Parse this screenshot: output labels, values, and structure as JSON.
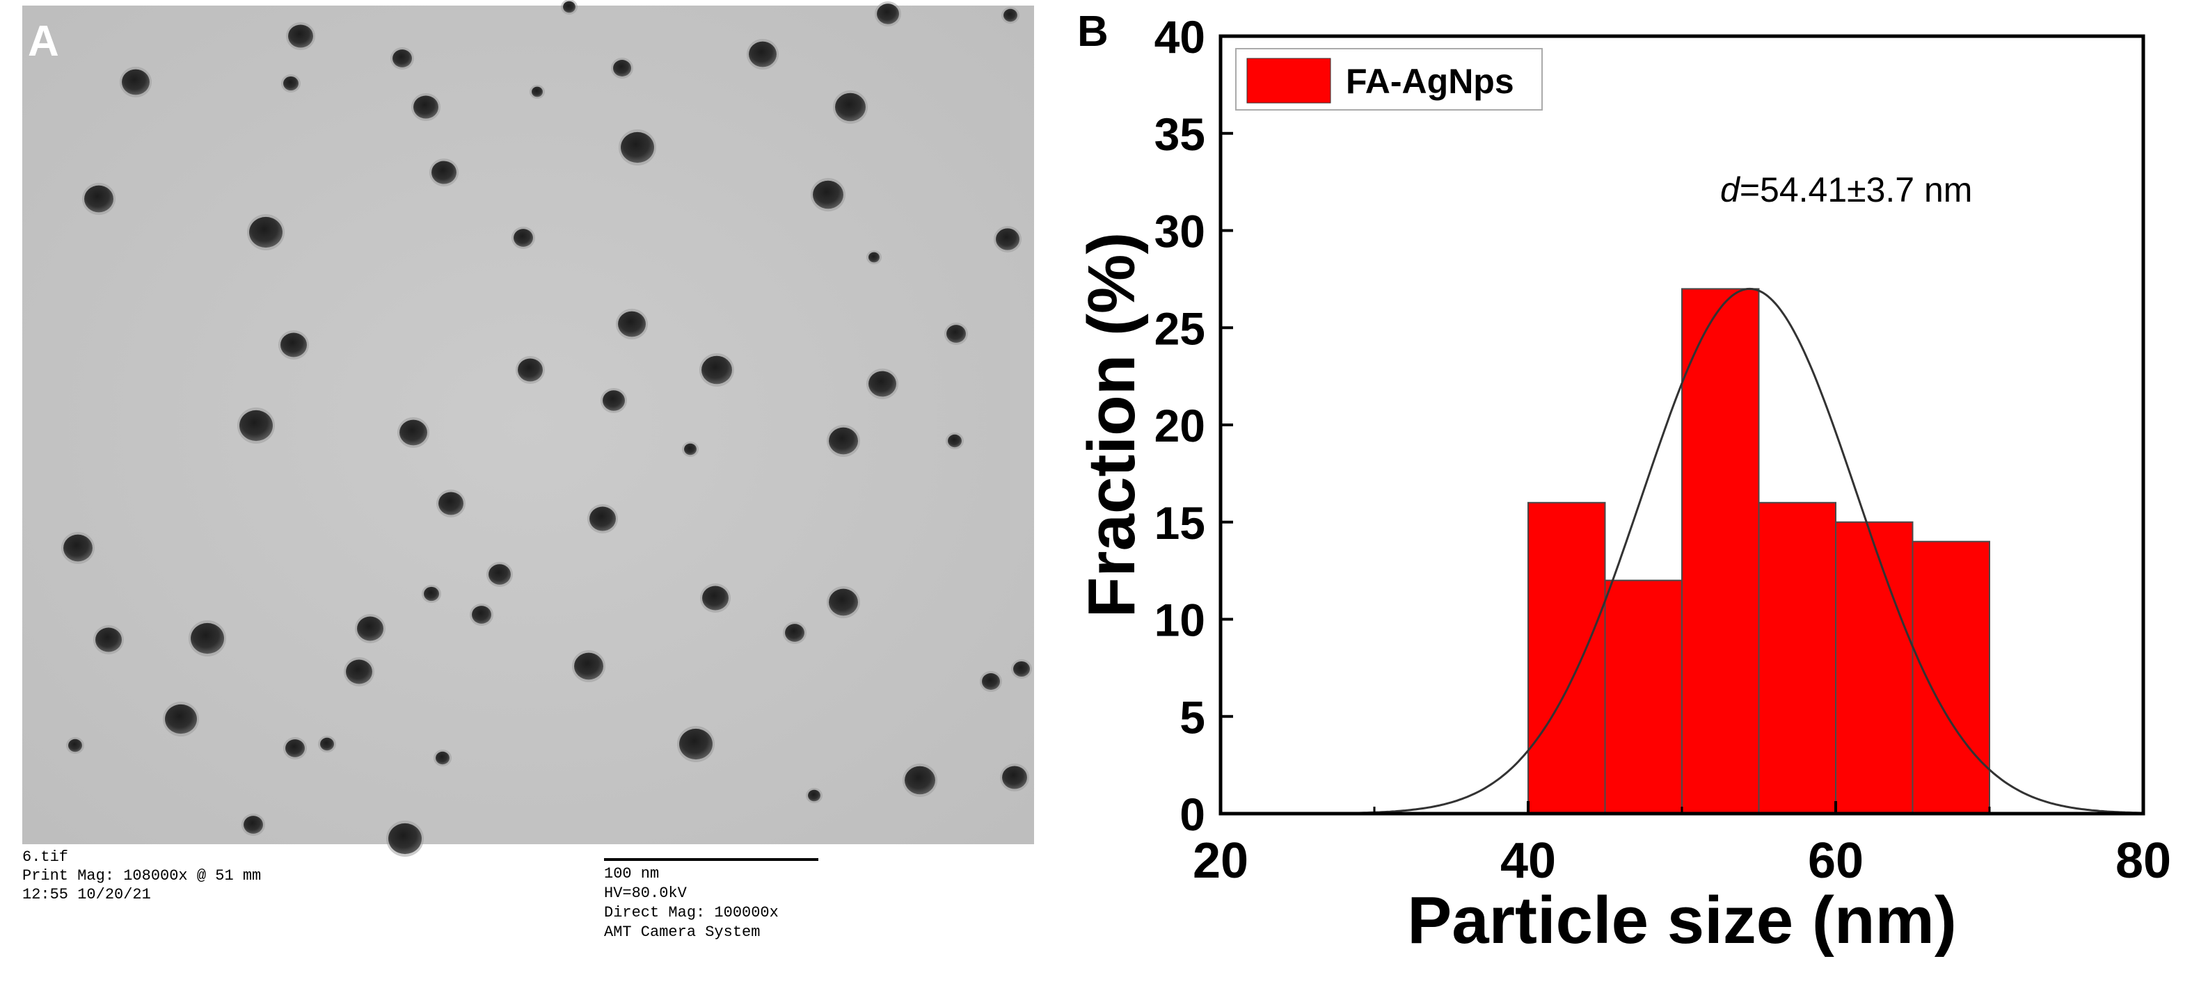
{
  "panel_a": {
    "label": "A",
    "meta_left": [
      "6.tif",
      "Print Mag: 108000x @ 51 mm",
      "12:55 10/20/21"
    ],
    "scale_bar_label": "100 nm",
    "meta_right": [
      "HV=80.0kV",
      "Direct Mag: 100000x",
      "AMT Camera System"
    ]
  },
  "panel_b": {
    "label": "B"
  },
  "chart_data": {
    "type": "bar",
    "bins": [
      {
        "from": 40,
        "to": 45,
        "value": 16
      },
      {
        "from": 45,
        "to": 50,
        "value": 12
      },
      {
        "from": 50,
        "to": 55,
        "value": 27
      },
      {
        "from": 55,
        "to": 60,
        "value": 16
      },
      {
        "from": 60,
        "to": 65,
        "value": 15
      },
      {
        "from": 65,
        "to": 70,
        "value": 14
      }
    ],
    "series": [
      {
        "name": "FA-AgNps",
        "color": "#ff0000"
      }
    ],
    "fit_curve": {
      "type": "gaussian",
      "center": 54.41,
      "peak": 27.0,
      "sigma": 7.0,
      "color": "#333333"
    },
    "annotation": {
      "italic": "d",
      "text": "=54.41±3.7 nm"
    },
    "xlabel": "Particle size (nm)",
    "ylabel": "Fraction (%)",
    "xlim": [
      20,
      80
    ],
    "ylim": [
      0,
      40
    ],
    "xticks": [
      20,
      40,
      60,
      80
    ],
    "yticks": [
      0,
      5,
      10,
      15,
      20,
      25,
      30,
      35,
      40
    ],
    "legend_position": "top-left",
    "grid": false
  }
}
